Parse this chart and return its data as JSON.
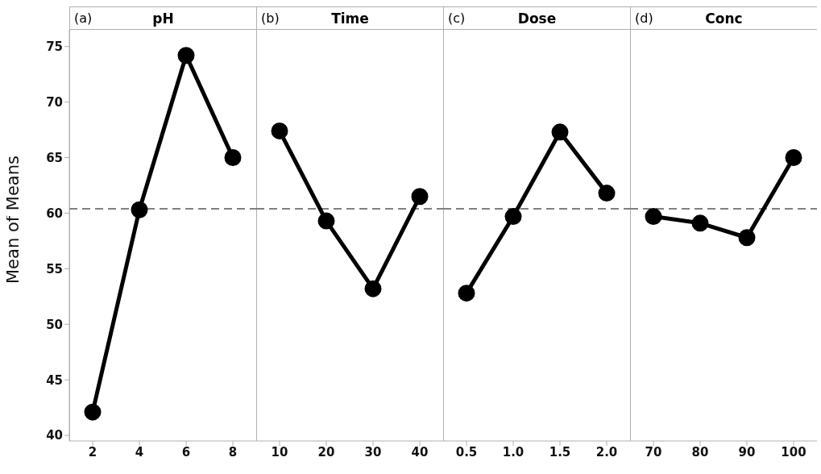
{
  "chart_data": [
    {
      "type": "line",
      "title": "pH",
      "annotations": [
        "(a)"
      ],
      "ylabel": "Mean of Means",
      "categories": [
        "2",
        "4",
        "6",
        "8"
      ],
      "values": [
        42.1,
        60.3,
        74.2,
        65.0
      ],
      "color": "#000000",
      "marker": "circle",
      "ylim": [
        39.5,
        76.5
      ],
      "yticks": [
        40,
        45,
        50,
        55,
        60,
        65,
        70,
        75
      ],
      "ref_lines": [
        {
          "axis": "y",
          "value": 60.4,
          "color": "#808080",
          "line_style": "dashed"
        }
      ]
    },
    {
      "type": "line",
      "title": "Time",
      "annotations": [
        "(b)"
      ],
      "categories": [
        "10",
        "20",
        "30",
        "40"
      ],
      "values": [
        67.4,
        59.3,
        53.2,
        61.5
      ],
      "color": "#000000",
      "marker": "circle",
      "ylim": [
        39.5,
        76.5
      ],
      "yticks": [
        40,
        45,
        50,
        55,
        60,
        65,
        70,
        75
      ],
      "tick_labels": "x",
      "ref_lines": [
        {
          "axis": "y",
          "value": 60.4,
          "color": "#808080",
          "line_style": "dashed"
        }
      ]
    },
    {
      "type": "line",
      "title": "Dose",
      "annotations": [
        "(c)"
      ],
      "categories": [
        "0.5",
        "1.0",
        "1.5",
        "2.0"
      ],
      "values": [
        52.8,
        59.7,
        67.3,
        61.8
      ],
      "color": "#000000",
      "marker": "circle",
      "ylim": [
        39.5,
        76.5
      ],
      "yticks": [
        40,
        45,
        50,
        55,
        60,
        65,
        70,
        75
      ],
      "tick_labels": "x",
      "ref_lines": [
        {
          "axis": "y",
          "value": 60.4,
          "color": "#808080",
          "line_style": "dashed"
        }
      ]
    },
    {
      "type": "line",
      "title": "Conc",
      "annotations": [
        "(d)"
      ],
      "categories": [
        "70",
        "80",
        "90",
        "100"
      ],
      "values": [
        59.7,
        59.1,
        57.8,
        65.0
      ],
      "color": "#000000",
      "marker": "circle",
      "ylim": [
        39.5,
        76.5
      ],
      "yticks": [
        40,
        45,
        50,
        55,
        60,
        65,
        70,
        75
      ],
      "tick_labels": "x",
      "ref_lines": [
        {
          "axis": "y",
          "value": 60.4,
          "color": "#808080",
          "line_style": "dashed"
        }
      ]
    }
  ]
}
